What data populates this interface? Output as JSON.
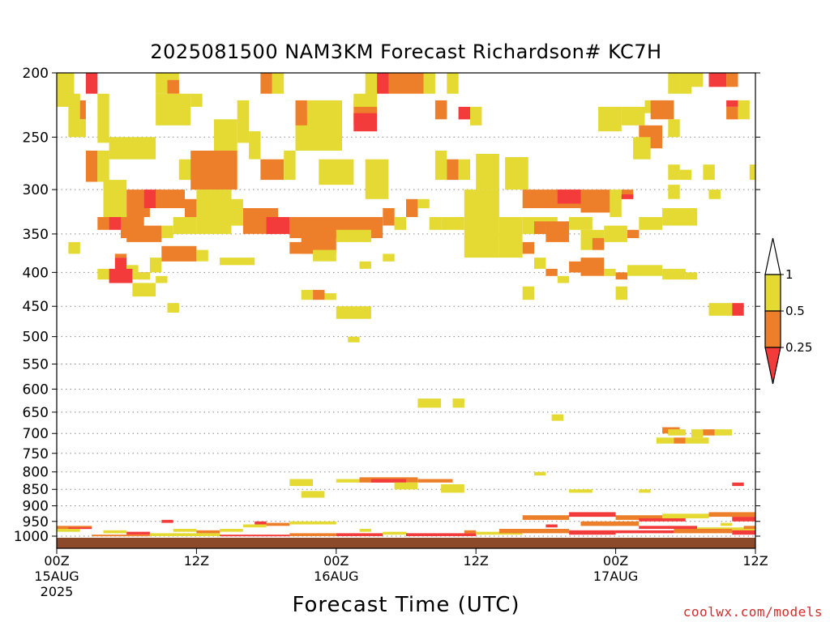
{
  "title": "2025081500 NAM3KM Forecast Richardson# KC7H",
  "credit": "coolwx.com/models",
  "colors": {
    "lt_025": "#f43b3b",
    "b025_05": "#ee7f2a",
    "b05_1": "#e4da33",
    "ground": "#8c4a2a",
    "grid": "#888888"
  },
  "chart_data": {
    "type": "heatmap",
    "xlabel": "Forecast Time (UTC)",
    "ylabel": "",
    "x_unit": "hours since 2025081500",
    "xlim": [
      0,
      60
    ],
    "ylim": [
      1000,
      200
    ],
    "y_scale": "log-pressure",
    "grid": "horizontal dotted",
    "legend_position": "right",
    "y_ticks": [
      "200",
      "250",
      "300",
      "350",
      "400",
      "450",
      "500",
      "550",
      "600",
      "650",
      "700",
      "750",
      "800",
      "850",
      "900",
      "950",
      "1000"
    ],
    "x_ticks": [
      {
        "x": 0,
        "lines": [
          "00Z",
          "15AUG",
          "2025"
        ]
      },
      {
        "x": 12,
        "lines": [
          "12Z"
        ]
      },
      {
        "x": 24,
        "lines": [
          "00Z",
          "16AUG"
        ]
      },
      {
        "x": 36,
        "lines": [
          "12Z"
        ]
      },
      {
        "x": 48,
        "lines": [
          "00Z",
          "17AUG"
        ]
      },
      {
        "x": 60,
        "lines": [
          "12Z"
        ]
      }
    ],
    "legend": [
      {
        "label": "1",
        "range": ">1",
        "color": "#ffffff"
      },
      {
        "label": "0.5",
        "range": "0.5-1",
        "color": "#e4da33"
      },
      {
        "label": "0.25",
        "range": "0.25-0.5",
        "color": "#ee7f2a"
      },
      {
        "label": "",
        "range": "<0.25",
        "color": "#f43b3b"
      }
    ],
    "cells_columns": [
      "x_start_hr",
      "x_end_hr",
      "p_top_hPa",
      "p_bottom_hPa",
      "class"
    ],
    "cells": [
      [
        0,
        1.5,
        200,
        225,
        "Y"
      ],
      [
        2.5,
        3.5,
        200,
        215,
        "R"
      ],
      [
        1,
        2,
        215,
        250,
        "Y"
      ],
      [
        2,
        2.5,
        220,
        235,
        "O"
      ],
      [
        2,
        2.5,
        235,
        250,
        "Y"
      ],
      [
        3.5,
        4.5,
        215,
        255,
        "Y"
      ],
      [
        4.5,
        8.5,
        250,
        270,
        "Y"
      ],
      [
        2.5,
        3.5,
        262,
        292,
        "O"
      ],
      [
        3.5,
        4.5,
        262,
        292,
        "Y"
      ],
      [
        8.5,
        10.5,
        200,
        215,
        "Y"
      ],
      [
        9.5,
        10.5,
        205,
        215,
        "O"
      ],
      [
        8.5,
        11.5,
        215,
        240,
        "Y"
      ],
      [
        11.5,
        12.5,
        215,
        225,
        "Y"
      ],
      [
        10.5,
        13.5,
        270,
        290,
        "Y"
      ],
      [
        11.5,
        15.5,
        262,
        300,
        "O"
      ],
      [
        13.5,
        15.5,
        235,
        262,
        "Y"
      ],
      [
        15.5,
        16.5,
        220,
        255,
        "Y"
      ],
      [
        16.5,
        17.5,
        245,
        270,
        "Y"
      ],
      [
        17.5,
        18.5,
        200,
        215,
        "O"
      ],
      [
        18.5,
        19.5,
        200,
        215,
        "Y"
      ],
      [
        17.5,
        19.5,
        270,
        290,
        "O"
      ],
      [
        19.5,
        20.5,
        262,
        290,
        "Y"
      ],
      [
        20.5,
        24.5,
        230,
        262,
        "Y"
      ],
      [
        20.5,
        21.5,
        220,
        240,
        "O"
      ],
      [
        21.5,
        24.5,
        220,
        235,
        "Y"
      ],
      [
        22.5,
        25.5,
        270,
        295,
        "Y"
      ],
      [
        26.5,
        28.5,
        270,
        310,
        "Y"
      ],
      [
        26.5,
        27.5,
        200,
        220,
        "Y"
      ],
      [
        27.5,
        28.5,
        200,
        215,
        "R"
      ],
      [
        28.5,
        31.5,
        200,
        215,
        "O"
      ],
      [
        25.5,
        27.5,
        220,
        240,
        "O"
      ],
      [
        25.5,
        27.5,
        230,
        245,
        "R"
      ],
      [
        25.5,
        27.5,
        215,
        225,
        "Y"
      ],
      [
        31.5,
        32.5,
        200,
        215,
        "Y"
      ],
      [
        32.5,
        33.5,
        220,
        235,
        "O"
      ],
      [
        33.5,
        34.5,
        200,
        215,
        "Y"
      ],
      [
        34.5,
        35.5,
        225,
        235,
        "R"
      ],
      [
        35.5,
        36.5,
        225,
        240,
        "Y"
      ],
      [
        32.5,
        33.5,
        262,
        290,
        "Y"
      ],
      [
        33.5,
        34.5,
        270,
        290,
        "O"
      ],
      [
        34.5,
        35.5,
        270,
        290,
        "Y"
      ],
      [
        36,
        38,
        265,
        300,
        "Y"
      ],
      [
        38.5,
        40.5,
        268,
        300,
        "Y"
      ],
      [
        40,
        45,
        300,
        320,
        "O"
      ],
      [
        43,
        45,
        300,
        315,
        "R"
      ],
      [
        45,
        47.5,
        300,
        325,
        "O"
      ],
      [
        47.5,
        48.5,
        300,
        330,
        "Y"
      ],
      [
        48.5,
        49.5,
        300,
        310,
        "O"
      ],
      [
        48.5,
        49.5,
        305,
        310,
        "R"
      ],
      [
        46.5,
        48.5,
        225,
        245,
        "Y"
      ],
      [
        48.5,
        50.5,
        225,
        240,
        "Y"
      ],
      [
        50.5,
        52.5,
        220,
        230,
        "Y"
      ],
      [
        51,
        53,
        220,
        235,
        "O"
      ],
      [
        52.5,
        53.5,
        235,
        250,
        "Y"
      ],
      [
        50,
        52,
        240,
        260,
        "O"
      ],
      [
        49.5,
        51,
        250,
        270,
        "Y"
      ],
      [
        52.5,
        53.5,
        200,
        215,
        "Y"
      ],
      [
        53.5,
        54.5,
        200,
        215,
        "Y"
      ],
      [
        54.5,
        55.5,
        200,
        210,
        "Y"
      ],
      [
        56,
        57.5,
        200,
        210,
        "R"
      ],
      [
        57.5,
        58.5,
        200,
        210,
        "O"
      ],
      [
        57.5,
        58.5,
        220,
        225,
        "R"
      ],
      [
        57.5,
        58.5,
        225,
        235,
        "O"
      ],
      [
        58.5,
        59.5,
        220,
        235,
        "Y"
      ],
      [
        52.5,
        53.5,
        275,
        290,
        "Y"
      ],
      [
        53.5,
        54.5,
        280,
        290,
        "Y"
      ],
      [
        55.5,
        56.5,
        275,
        290,
        "Y"
      ],
      [
        59.5,
        60,
        275,
        290,
        "Y"
      ],
      [
        52.5,
        53.5,
        295,
        310,
        "Y"
      ],
      [
        56,
        57,
        300,
        310,
        "Y"
      ],
      [
        4,
        6,
        290,
        340,
        "Y"
      ],
      [
        6,
        8,
        300,
        330,
        "O"
      ],
      [
        5.5,
        7.5,
        330,
        355,
        "O"
      ],
      [
        7.5,
        9,
        300,
        320,
        "R"
      ],
      [
        8.5,
        11,
        300,
        320,
        "O"
      ],
      [
        3.5,
        4.5,
        330,
        345,
        "O"
      ],
      [
        4.5,
        5.5,
        330,
        345,
        "R"
      ],
      [
        6,
        9,
        340,
        360,
        "O"
      ],
      [
        9,
        10,
        340,
        355,
        "Y"
      ],
      [
        10,
        12,
        330,
        350,
        "Y"
      ],
      [
        12,
        15,
        300,
        350,
        "Y"
      ],
      [
        11,
        12,
        310,
        330,
        "O"
      ],
      [
        15,
        16,
        310,
        340,
        "Y"
      ],
      [
        16,
        19,
        320,
        350,
        "O"
      ],
      [
        18,
        20,
        330,
        350,
        "R"
      ],
      [
        20,
        28,
        330,
        355,
        "O"
      ],
      [
        21,
        24,
        350,
        375,
        "O"
      ],
      [
        24,
        27,
        345,
        360,
        "Y"
      ],
      [
        28,
        29,
        320,
        340,
        "O"
      ],
      [
        29,
        30,
        330,
        345,
        "Y"
      ],
      [
        30,
        31,
        310,
        330,
        "O"
      ],
      [
        31,
        32,
        310,
        320,
        "Y"
      ],
      [
        32,
        33,
        330,
        345,
        "Y"
      ],
      [
        33,
        35,
        330,
        345,
        "Y"
      ],
      [
        35,
        38,
        300,
        380,
        "Y"
      ],
      [
        38,
        40,
        330,
        380,
        "Y"
      ],
      [
        40,
        43,
        330,
        350,
        "Y"
      ],
      [
        41,
        42,
        335,
        350,
        "O"
      ],
      [
        42,
        44,
        335,
        360,
        "O"
      ],
      [
        44,
        46,
        330,
        345,
        "Y"
      ],
      [
        45,
        47,
        345,
        370,
        "Y"
      ],
      [
        46,
        47,
        355,
        370,
        "O"
      ],
      [
        47,
        49,
        340,
        360,
        "Y"
      ],
      [
        49,
        50,
        345,
        355,
        "O"
      ],
      [
        50,
        52,
        330,
        345,
        "Y"
      ],
      [
        52,
        55,
        320,
        340,
        "Y"
      ],
      [
        1,
        2,
        360,
        375,
        "Y"
      ],
      [
        5,
        6,
        380,
        400,
        "R"
      ],
      [
        5,
        6,
        375,
        380,
        "O"
      ],
      [
        6,
        7,
        390,
        400,
        "Y"
      ],
      [
        7,
        8,
        400,
        410,
        "R"
      ],
      [
        8,
        9,
        380,
        400,
        "Y"
      ],
      [
        9,
        12,
        365,
        385,
        "O"
      ],
      [
        12,
        13,
        370,
        385,
        "Y"
      ],
      [
        14,
        17,
        380,
        390,
        "Y"
      ],
      [
        20,
        22,
        360,
        375,
        "O"
      ],
      [
        22,
        24,
        370,
        385,
        "Y"
      ],
      [
        26,
        27,
        385,
        395,
        "Y"
      ],
      [
        28,
        29,
        375,
        385,
        "Y"
      ],
      [
        40,
        41,
        360,
        375,
        "O"
      ],
      [
        41,
        42,
        380,
        395,
        "Y"
      ],
      [
        42,
        43,
        395,
        405,
        "O"
      ],
      [
        43,
        44,
        405,
        415,
        "Y"
      ],
      [
        44,
        45,
        385,
        400,
        "O"
      ],
      [
        45,
        47,
        380,
        405,
        "O"
      ],
      [
        47,
        48,
        395,
        405,
        "Y"
      ],
      [
        48,
        49,
        400,
        410,
        "O"
      ],
      [
        49,
        52,
        390,
        405,
        "Y"
      ],
      [
        52,
        54,
        395,
        410,
        "Y"
      ],
      [
        54,
        55,
        400,
        410,
        "Y"
      ],
      [
        3.5,
        5,
        395,
        410,
        "Y"
      ],
      [
        4.5,
        6.5,
        395,
        415,
        "R"
      ],
      [
        6.5,
        8,
        400,
        410,
        "Y"
      ],
      [
        8.5,
        9.5,
        405,
        415,
        "Y"
      ],
      [
        6.5,
        8.5,
        415,
        435,
        "Y"
      ],
      [
        9.5,
        10.5,
        445,
        460,
        "Y"
      ],
      [
        21,
        22,
        425,
        440,
        "Y"
      ],
      [
        22,
        23,
        425,
        440,
        "O"
      ],
      [
        23,
        24,
        430,
        440,
        "Y"
      ],
      [
        24,
        27,
        450,
        470,
        "Y"
      ],
      [
        25,
        26,
        500,
        510,
        "Y"
      ],
      [
        40,
        41,
        420,
        440,
        "Y"
      ],
      [
        48,
        49,
        420,
        440,
        "Y"
      ],
      [
        56,
        58,
        445,
        465,
        "Y"
      ],
      [
        58,
        59,
        445,
        465,
        "R"
      ],
      [
        31,
        33,
        620,
        640,
        "Y"
      ],
      [
        34,
        35,
        620,
        640,
        "Y"
      ],
      [
        42.5,
        43.5,
        655,
        670,
        "Y"
      ],
      [
        52,
        53.5,
        685,
        700,
        "O"
      ],
      [
        52.5,
        54,
        690,
        705,
        "Y"
      ],
      [
        54.5,
        55.5,
        690,
        710,
        "Y"
      ],
      [
        55.5,
        56.5,
        690,
        705,
        "O"
      ],
      [
        56.5,
        58,
        690,
        705,
        "Y"
      ],
      [
        51.5,
        53,
        710,
        725,
        "Y"
      ],
      [
        53,
        54,
        710,
        725,
        "O"
      ],
      [
        54,
        56,
        710,
        725,
        "Y"
      ],
      [
        20,
        22,
        820,
        840,
        "Y"
      ],
      [
        24,
        26,
        820,
        830,
        "Y"
      ],
      [
        26,
        31,
        815,
        830,
        "O"
      ],
      [
        31,
        34,
        820,
        830,
        "O"
      ],
      [
        27,
        30,
        820,
        830,
        "R"
      ],
      [
        29,
        31,
        830,
        850,
        "Y"
      ],
      [
        33,
        35,
        835,
        860,
        "Y"
      ],
      [
        21,
        23,
        855,
        875,
        "Y"
      ],
      [
        41,
        42,
        800,
        810,
        "Y"
      ],
      [
        44,
        46,
        850,
        860,
        "Y"
      ],
      [
        50,
        51,
        850,
        860,
        "Y"
      ],
      [
        58,
        59,
        830,
        840,
        "R"
      ]
    ],
    "surface_bands_columns": [
      "x_start_hr",
      "x_end_hr",
      "p_top_hPa",
      "p_bottom_hPa",
      "class"
    ],
    "surface_bands": [
      [
        0,
        3,
        965,
        975,
        "O"
      ],
      [
        1,
        3,
        970,
        975,
        "R"
      ],
      [
        4,
        6,
        980,
        990,
        "Y"
      ],
      [
        6,
        8,
        985,
        995,
        "R"
      ],
      [
        10,
        12,
        975,
        985,
        "Y"
      ],
      [
        12,
        14,
        980,
        990,
        "O"
      ],
      [
        14,
        16,
        975,
        985,
        "Y"
      ],
      [
        16,
        18,
        960,
        970,
        "Y"
      ],
      [
        18,
        20,
        955,
        965,
        "O"
      ],
      [
        20,
        24,
        950,
        960,
        "Y"
      ],
      [
        24,
        28,
        990,
        1000,
        "R"
      ],
      [
        28,
        30,
        985,
        995,
        "Y"
      ],
      [
        30,
        36,
        990,
        1000,
        "R"
      ],
      [
        36,
        40,
        985,
        995,
        "Y"
      ],
      [
        40,
        44,
        930,
        945,
        "O"
      ],
      [
        44,
        48,
        920,
        935,
        "R"
      ],
      [
        48,
        52,
        930,
        945,
        "O"
      ],
      [
        50,
        54,
        940,
        950,
        "R"
      ],
      [
        52,
        56,
        925,
        940,
        "Y"
      ],
      [
        56,
        60,
        920,
        935,
        "O"
      ],
      [
        58,
        60,
        935,
        950,
        "R"
      ],
      [
        45,
        50,
        950,
        965,
        "O"
      ],
      [
        50,
        55,
        965,
        975,
        "R"
      ],
      [
        55,
        60,
        970,
        985,
        "Y"
      ],
      [
        38,
        44,
        975,
        990,
        "O"
      ],
      [
        44,
        48,
        980,
        995,
        "R"
      ],
      [
        48,
        53,
        980,
        990,
        "R"
      ],
      [
        53,
        58,
        975,
        990,
        "O"
      ],
      [
        58,
        60,
        980,
        995,
        "R"
      ],
      [
        3,
        8,
        995,
        1000,
        "O"
      ],
      [
        8,
        14,
        990,
        1000,
        "Y"
      ],
      [
        14,
        20,
        995,
        1000,
        "R"
      ],
      [
        20,
        24,
        990,
        1000,
        "O"
      ],
      [
        0,
        2,
        975,
        985,
        "Y"
      ],
      [
        9,
        10,
        945,
        955,
        "R"
      ],
      [
        17,
        18,
        950,
        960,
        "R"
      ],
      [
        26,
        27,
        975,
        985,
        "Y"
      ],
      [
        35,
        36,
        980,
        990,
        "O"
      ],
      [
        42,
        43,
        960,
        970,
        "R"
      ],
      [
        47,
        48,
        955,
        965,
        "O"
      ],
      [
        57,
        58,
        955,
        965,
        "Y"
      ],
      [
        59,
        60,
        965,
        975,
        "O"
      ]
    ]
  }
}
